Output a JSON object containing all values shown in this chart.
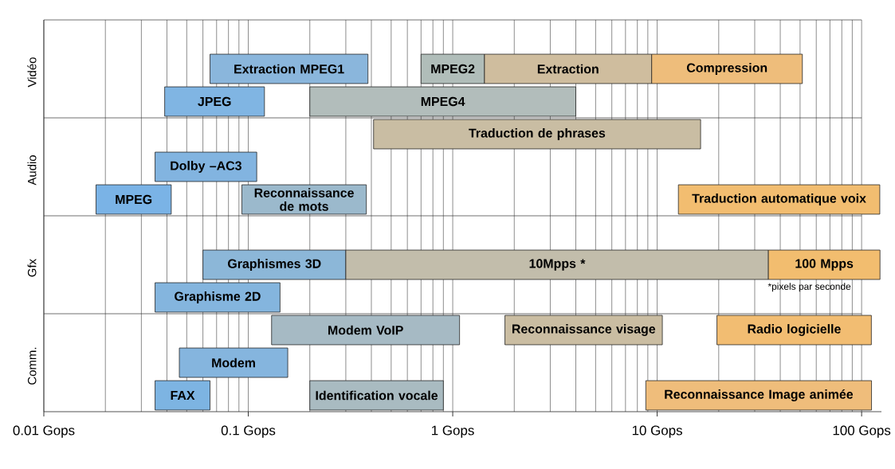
{
  "chart_data": {
    "type": "bar",
    "orientation": "horizontal",
    "log": "x",
    "grid": "x",
    "categories": [
      null,
      "Vidéo",
      null,
      null,
      "Audio",
      null,
      null,
      "Gfx",
      null,
      null,
      "Comm.",
      null
    ],
    "xlim": [
      0.01,
      125
    ],
    "xticks": [
      {
        "value": 0.01,
        "label": "0.01 Gops"
      },
      {
        "value": 0.1,
        "label": "0.1 Gops"
      },
      {
        "value": 1,
        "label": "1 Gops"
      },
      {
        "value": 10,
        "label": "10 Gops"
      },
      {
        "value": 100,
        "label": "100 Gops"
      }
    ],
    "annotations": [
      "*pixels par seconde"
    ],
    "series": [
      {
        "name": "Extraction MPEG1",
        "color": "#8ab6dc",
        "values": [
          null,
          0.32,
          null,
          null,
          null,
          null,
          null,
          null,
          null,
          null,
          null,
          null
        ],
        "base": [
          null,
          0.065,
          null,
          null,
          null,
          null,
          null,
          null,
          null,
          null,
          null,
          null
        ]
      },
      {
        "name": "MPEG2",
        "color": "#b0bdb9",
        "values": [
          null,
          0.73,
          null,
          null,
          null,
          null,
          null,
          null,
          null,
          null,
          null,
          null
        ],
        "base": [
          null,
          0.7,
          null,
          null,
          null,
          null,
          null,
          null,
          null,
          null,
          null,
          null
        ]
      },
      {
        "name": "Extraction",
        "color": "#cfbd9e",
        "values": [
          null,
          7.97,
          null,
          null,
          null,
          null,
          null,
          null,
          null,
          null,
          null,
          null
        ],
        "base": [
          null,
          1.43,
          null,
          null,
          null,
          null,
          null,
          null,
          null,
          null,
          null,
          null
        ]
      },
      {
        "name": "Compression",
        "color": "#eebd7b",
        "values": [
          null,
          41.9,
          null,
          null,
          null,
          null,
          null,
          null,
          null,
          null,
          null,
          null
        ],
        "base": [
          null,
          9.4,
          null,
          null,
          null,
          null,
          null,
          null,
          null,
          null,
          null,
          null
        ]
      },
      {
        "name": "JPEG",
        "color": "#80b5e3",
        "values": [
          null,
          null,
          0.081,
          null,
          null,
          null,
          null,
          null,
          null,
          null,
          null,
          null
        ],
        "base": [
          null,
          null,
          0.039,
          null,
          null,
          null,
          null,
          null,
          null,
          null,
          null,
          null
        ]
      },
      {
        "name": "MPEG4",
        "color": "#b2bdbb",
        "values": [
          null,
          null,
          3.8,
          null,
          null,
          null,
          null,
          null,
          null,
          null,
          null,
          null
        ],
        "base": [
          null,
          null,
          0.2,
          null,
          null,
          null,
          null,
          null,
          null,
          null,
          null,
          null
        ]
      },
      {
        "name": "Traduction de phrases",
        "color": "#c9bda3",
        "values": [
          null,
          null,
          null,
          15.9,
          null,
          null,
          null,
          null,
          null,
          null,
          null,
          null
        ],
        "base": [
          null,
          null,
          null,
          0.41,
          null,
          null,
          null,
          null,
          null,
          null,
          null,
          null
        ]
      },
      {
        "name": "Dolby –AC3",
        "color": "#82b4e0",
        "values": [
          null,
          null,
          null,
          null,
          0.075,
          null,
          null,
          null,
          null,
          null,
          null,
          null
        ],
        "base": [
          null,
          null,
          null,
          null,
          0.035,
          null,
          null,
          null,
          null,
          null,
          null,
          null
        ]
      },
      {
        "name": "MPEG",
        "color": "#7ab3e6",
        "values": [
          null,
          null,
          null,
          null,
          null,
          0.024,
          null,
          null,
          null,
          null,
          null,
          null
        ],
        "base": [
          null,
          null,
          null,
          null,
          null,
          0.018,
          null,
          null,
          null,
          null,
          null,
          null
        ]
      },
      {
        "name": "Reconnaissance de mots",
        "color": "#9bb9cc",
        "values": [
          null,
          null,
          null,
          null,
          null,
          0.285,
          null,
          null,
          null,
          null,
          null,
          null
        ],
        "base": [
          null,
          null,
          null,
          null,
          null,
          0.093,
          null,
          null,
          null,
          null,
          null,
          null
        ]
      },
      {
        "name": "Traduction automatique voix",
        "color": "#f2bd70",
        "values": [
          null,
          null,
          null,
          null,
          null,
          110,
          null,
          null,
          null,
          null,
          null,
          null
        ],
        "base": [
          null,
          null,
          null,
          null,
          null,
          12.7,
          null,
          null,
          null,
          null,
          null,
          null
        ]
      },
      {
        "name": "Graphismes 3D",
        "color": "#8cb7d8",
        "values": [
          null,
          null,
          null,
          null,
          null,
          null,
          null,
          0.24,
          null,
          null,
          null,
          null
        ],
        "base": [
          null,
          null,
          null,
          null,
          null,
          null,
          null,
          0.06,
          null,
          null,
          null,
          null
        ]
      },
      {
        "name": "10Mpps *",
        "color": "#c2bdab",
        "values": [
          null,
          null,
          null,
          null,
          null,
          null,
          null,
          34.7,
          null,
          null,
          null,
          null
        ],
        "base": [
          null,
          null,
          null,
          null,
          null,
          null,
          null,
          0.3,
          null,
          null,
          null,
          null
        ]
      },
      {
        "name": "100 Mpps",
        "color": "#f2bd6f",
        "values": [
          null,
          null,
          null,
          null,
          null,
          null,
          null,
          88,
          null,
          null,
          null,
          null
        ],
        "base": [
          null,
          null,
          null,
          null,
          null,
          null,
          null,
          35,
          null,
          null,
          null,
          null
        ]
      },
      {
        "name": "Graphisme 2D",
        "color": "#84b5de",
        "values": [
          null,
          null,
          null,
          null,
          null,
          null,
          null,
          null,
          0.108,
          null,
          null,
          null
        ],
        "base": [
          null,
          null,
          null,
          null,
          null,
          null,
          null,
          null,
          0.035,
          null,
          null,
          null
        ]
      },
      {
        "name": "Modem VoIP",
        "color": "#a6bac4",
        "values": [
          null,
          null,
          null,
          null,
          null,
          null,
          null,
          null,
          null,
          0.95,
          null,
          null
        ],
        "base": [
          null,
          null,
          null,
          null,
          null,
          null,
          null,
          null,
          null,
          0.13,
          null,
          null
        ]
      },
      {
        "name": "Reconnaissance visage",
        "color": "#cabda2",
        "values": [
          null,
          null,
          null,
          null,
          null,
          null,
          null,
          null,
          null,
          8.8,
          null,
          null
        ],
        "base": [
          null,
          null,
          null,
          null,
          null,
          null,
          null,
          null,
          null,
          1.8,
          null,
          null
        ]
      },
      {
        "name": "Radio logicielle",
        "color": "#f2bd72",
        "values": [
          null,
          null,
          null,
          null,
          null,
          null,
          null,
          null,
          null,
          92,
          null,
          null
        ],
        "base": [
          null,
          null,
          null,
          null,
          null,
          null,
          null,
          null,
          null,
          19.6,
          null,
          null
        ]
      },
      {
        "name": "Modem",
        "color": "#85b5de",
        "values": [
          null,
          null,
          null,
          null,
          null,
          null,
          null,
          null,
          null,
          null,
          0.11,
          null
        ],
        "base": [
          null,
          null,
          null,
          null,
          null,
          null,
          null,
          null,
          null,
          null,
          0.046,
          null
        ]
      },
      {
        "name": "FAX",
        "color": "#7db4e2",
        "values": [
          null,
          null,
          null,
          null,
          null,
          null,
          null,
          null,
          null,
          null,
          null,
          0.03
        ],
        "base": [
          null,
          null,
          null,
          null,
          null,
          null,
          null,
          null,
          null,
          null,
          null,
          0.035
        ]
      },
      {
        "name": "Identification vocale",
        "color": "#a9bbc1",
        "values": [
          null,
          null,
          null,
          null,
          null,
          null,
          null,
          null,
          null,
          null,
          null,
          0.7
        ],
        "base": [
          null,
          null,
          null,
          null,
          null,
          null,
          null,
          null,
          null,
          null,
          null,
          0.2
        ]
      },
      {
        "name": "Reconnaissance Image animée",
        "color": "#efbd7b",
        "values": [
          null,
          null,
          null,
          null,
          null,
          null,
          null,
          null,
          null,
          null,
          null,
          103
        ],
        "base": [
          null,
          null,
          null,
          null,
          null,
          null,
          null,
          null,
          null,
          null,
          null,
          8.8
        ]
      }
    ]
  }
}
